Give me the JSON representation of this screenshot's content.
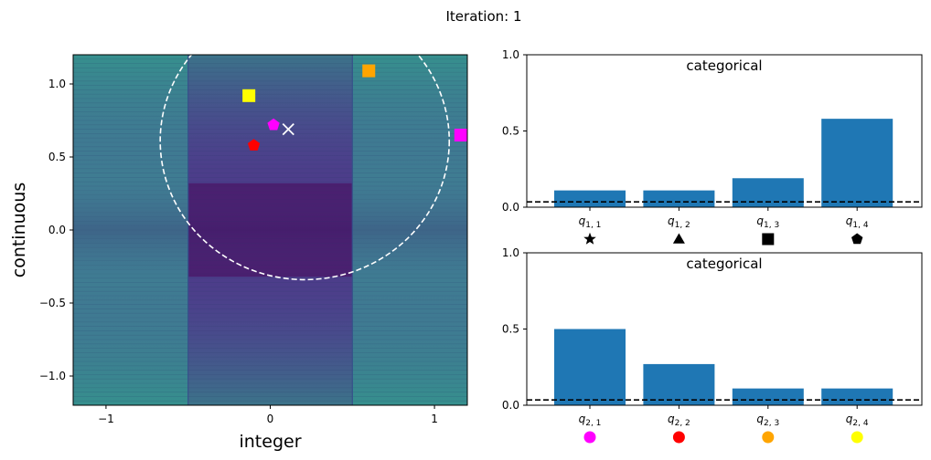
{
  "figure_title": "Iteration: 1",
  "chart_data": [
    {
      "type": "heatmap",
      "xlabel": "integer",
      "ylabel": "continuous",
      "xlim": [
        -1.2,
        1.2
      ],
      "ylim": [
        -1.2,
        1.2
      ],
      "x_ticks": [
        -1,
        0,
        1
      ],
      "x_tick_labels": [
        "−1",
        "0",
        "1"
      ],
      "y_ticks": [
        -1.0,
        -0.5,
        0.0,
        0.5,
        1.0
      ],
      "y_tick_labels": [
        "−1.0",
        "−0.5",
        "0.0",
        "0.5",
        "1.0"
      ],
      "integer_bands": [
        {
          "x_from": -1.2,
          "x_to": -0.5,
          "color": "#3f7c92"
        },
        {
          "x_from": -0.5,
          "x_to": 0.5,
          "color": "#4c3d8a"
        },
        {
          "x_from": 0.5,
          "x_to": 1.2,
          "color": "#3f7c92"
        }
      ],
      "center_band": {
        "x_from": -0.5,
        "x_to": 0.5,
        "y_from": -0.32,
        "y_to": 0.32,
        "color": "#4a1d6e"
      },
      "ellipse": {
        "cx": 0.21,
        "cy": 0.61,
        "rx": 0.88,
        "ry": 0.95,
        "color": "#ffffff",
        "style": "dashed"
      },
      "center_marker": {
        "x": 0.11,
        "y": 0.69,
        "marker": "x",
        "color": "#ffffff"
      },
      "points": [
        {
          "x": -0.13,
          "y": 0.92,
          "marker": "square",
          "color": "#ffff00"
        },
        {
          "x": 0.6,
          "y": 1.09,
          "marker": "square",
          "color": "#ffa500"
        },
        {
          "x": 1.16,
          "y": 0.65,
          "marker": "square",
          "color": "#ff00ff"
        },
        {
          "x": 0.02,
          "y": 0.72,
          "marker": "pentagon",
          "color": "#ff00ff"
        },
        {
          "x": -0.1,
          "y": 0.58,
          "marker": "pentagon",
          "color": "#ff0000"
        }
      ]
    },
    {
      "type": "bar",
      "title": "categorical",
      "categories": [
        "q_{1,1}",
        "q_{1,2}",
        "q_{1,3}",
        "q_{1,4}"
      ],
      "category_labels": [
        {
          "base": "q",
          "sub": "1, 1"
        },
        {
          "base": "q",
          "sub": "1, 2"
        },
        {
          "base": "q",
          "sub": "1, 3"
        },
        {
          "base": "q",
          "sub": "1, 4"
        }
      ],
      "values": [
        0.11,
        0.11,
        0.19,
        0.58
      ],
      "ylim": [
        0,
        1
      ],
      "y_ticks": [
        0.0,
        0.5,
        1.0
      ],
      "y_tick_labels": [
        "0.0",
        "0.5",
        "1.0"
      ],
      "threshold": 0.035,
      "bar_color": "#1f77b4",
      "marker_shapes": [
        "star",
        "triangle",
        "square",
        "pentagon"
      ],
      "marker_colors": [
        "#000000",
        "#000000",
        "#000000",
        "#000000"
      ]
    },
    {
      "type": "bar",
      "title": "categorical",
      "categories": [
        "q_{2,1}",
        "q_{2,2}",
        "q_{2,3}",
        "q_{2,4}"
      ],
      "category_labels": [
        {
          "base": "q",
          "sub": "2, 1"
        },
        {
          "base": "q",
          "sub": "2, 2"
        },
        {
          "base": "q",
          "sub": "2, 3"
        },
        {
          "base": "q",
          "sub": "2, 4"
        }
      ],
      "values": [
        0.5,
        0.27,
        0.11,
        0.11
      ],
      "ylim": [
        0,
        1
      ],
      "y_ticks": [
        0.0,
        0.5,
        1.0
      ],
      "y_tick_labels": [
        "0.0",
        "0.5",
        "1.0"
      ],
      "threshold": 0.035,
      "bar_color": "#1f77b4",
      "marker_shapes": [
        "circle",
        "circle",
        "circle",
        "circle"
      ],
      "marker_colors": [
        "#ff00ff",
        "#ff0000",
        "#ffa500",
        "#ffff00"
      ]
    }
  ]
}
